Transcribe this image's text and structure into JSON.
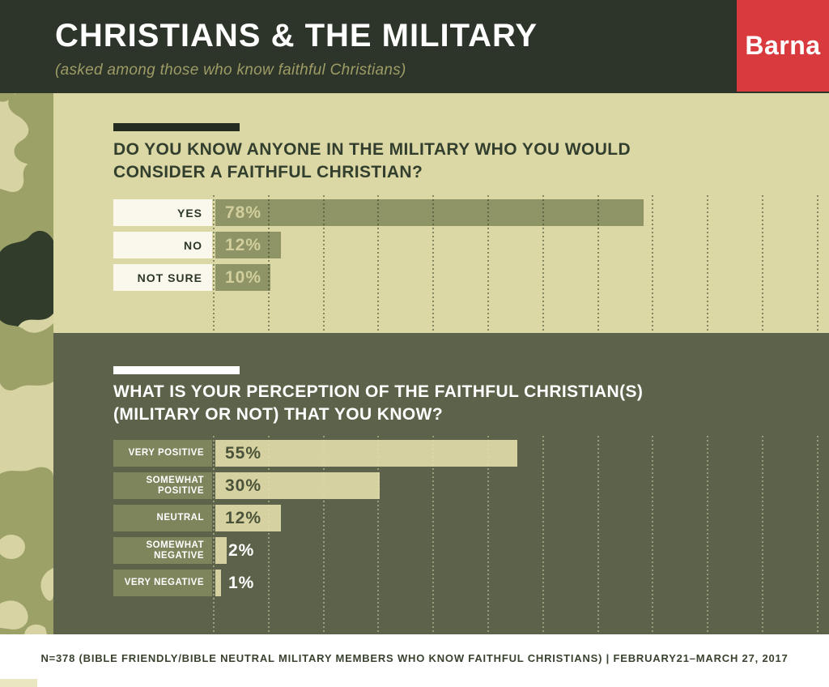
{
  "header": {
    "title": "CHRISTIANS & THE MILITARY",
    "subtitle": "(asked among those who know faithful Christians)",
    "logo_label": "Barna"
  },
  "colors": {
    "brand_red": "#d93a3e",
    "header_bg": "#2d3429",
    "section1_bg": "#dcd8a5",
    "section2_bg": "#5c634a",
    "bar_section1": "#8e9466",
    "bar_section2": "#d5d1a0",
    "camo_light": "#d7d3a2",
    "camo_medium": "#9ba167",
    "camo_dark": "#313c2b"
  },
  "chart_data": [
    {
      "type": "bar",
      "orientation": "horizontal",
      "question": "DO YOU KNOW ANYONE IN THE MILITARY WHO YOU WOULD\nCONSIDER A FAITHFUL CHRISTIAN?",
      "categories": [
        "YES",
        "NO",
        "NOT SURE"
      ],
      "values": [
        78,
        12,
        10
      ],
      "unit": "%",
      "xlim": [
        0,
        110
      ],
      "gridline_step": 10,
      "grid": "dotted vertical"
    },
    {
      "type": "bar",
      "orientation": "horizontal",
      "question": "WHAT IS YOUR PERCEPTION OF THE FAITHFUL CHRISTIAN(S)\n(MILITARY OR NOT) THAT YOU KNOW?",
      "categories": [
        "VERY POSITIVE",
        "SOMEWHAT POSITIVE",
        "NEUTRAL",
        "SOMEWHAT NEGATIVE",
        "VERY NEGATIVE"
      ],
      "values": [
        55,
        30,
        12,
        2,
        1
      ],
      "unit": "%",
      "xlim": [
        0,
        110
      ],
      "gridline_step": 10,
      "grid": "dotted vertical"
    }
  ],
  "footer": {
    "note": "N=378 (BIBLE FRIENDLY/BIBLE NEUTRAL MILITARY MEMBERS WHO KNOW FAITHFUL CHRISTIANS) | FEBRUARY21–MARCH 27, 2017"
  }
}
